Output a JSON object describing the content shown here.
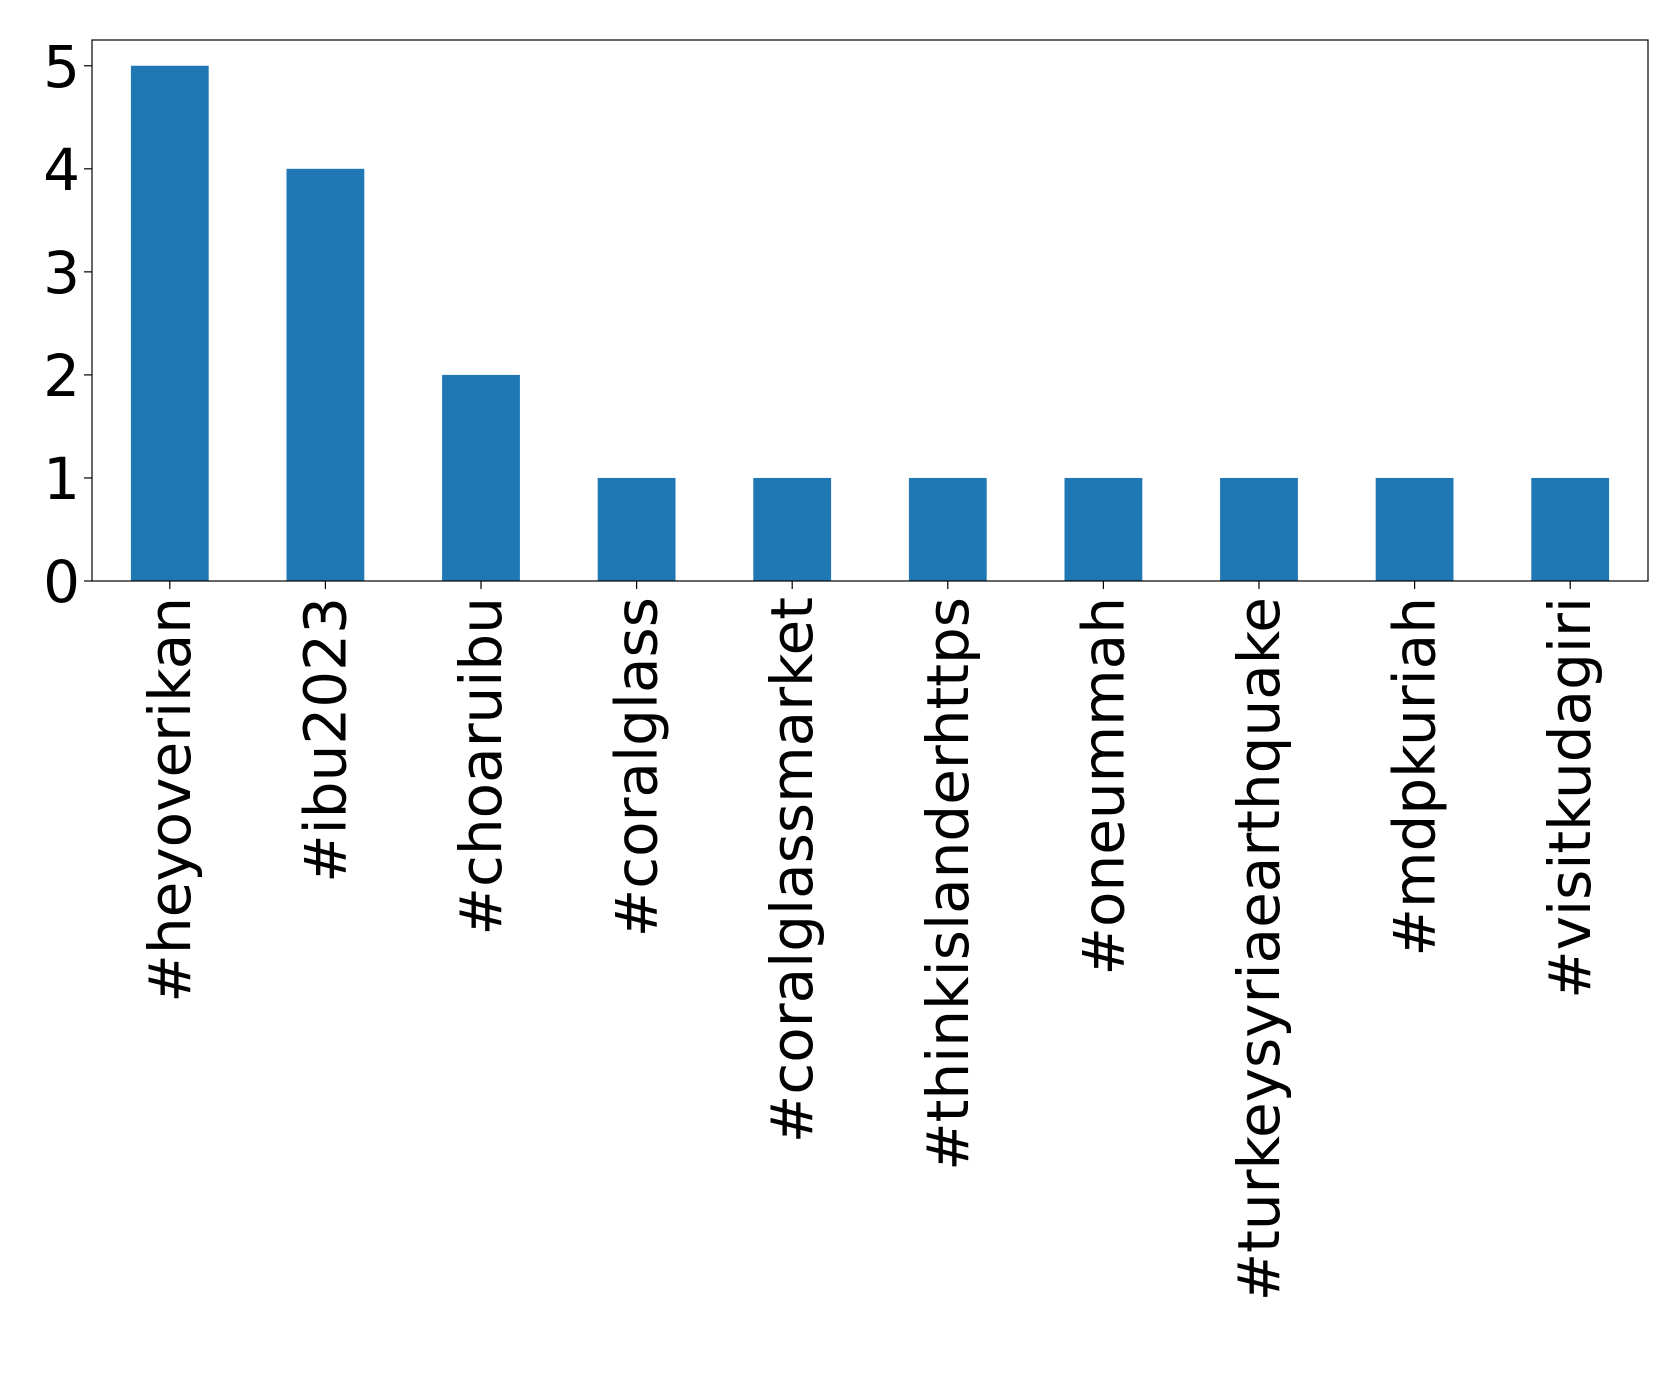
{
  "chart_data": {
    "type": "bar",
    "categories": [
      "#heyoverikan",
      "#ibu2023",
      "#choaruibu",
      "#coralglass",
      "#coralglassmarket",
      "#thinkislanderhttps",
      "#oneummah",
      "#turkeysyriaearthquake",
      "#mdpkuriah",
      "#visitkudagiri"
    ],
    "values": [
      5,
      4,
      2,
      1,
      1,
      1,
      1,
      1,
      1,
      1
    ],
    "color": "#1f77b4",
    "ylim": [
      0,
      5.25
    ],
    "yticks": [
      0,
      1,
      2,
      3,
      4,
      5
    ],
    "grid": false
  }
}
